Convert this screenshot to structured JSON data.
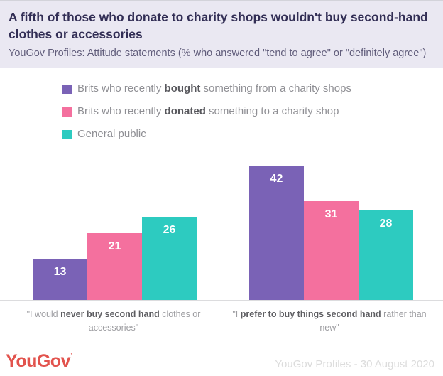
{
  "header": {
    "title": "A fifth of those who donate to charity shops wouldn't buy second-hand clothes or accessories",
    "subtitle": "YouGov Profiles: Attitude statements (% who answered \"tend to agree\" or \"definitely agree\")"
  },
  "legend": {
    "items": [
      {
        "prefix": "Brits who recently ",
        "bold": "bought",
        "suffix": " something from a charity shops"
      },
      {
        "prefix": "Brits who recently ",
        "bold": "donated",
        "suffix": " something to a charity shop"
      },
      {
        "prefix": "General public",
        "bold": "",
        "suffix": ""
      }
    ]
  },
  "chart_data": {
    "type": "bar",
    "categories": [
      "\"I would never buy second hand clothes or accessories\"",
      "\"I prefer to buy things second hand rather than new\""
    ],
    "series": [
      {
        "name": "Brits who recently bought something from a charity shops",
        "color": "#7a62b6",
        "values": [
          13,
          42
        ]
      },
      {
        "name": "Brits who recently donated something to a charity shop",
        "color": "#f4709e",
        "values": [
          21,
          31
        ]
      },
      {
        "name": "General public",
        "color": "#2dcbc0",
        "values": [
          26,
          28
        ]
      }
    ],
    "title": "A fifth of those who donate to charity shops wouldn't buy second-hand clothes or accessories",
    "xlabel": "",
    "ylabel": "",
    "ylim": [
      0,
      45
    ],
    "grid": false,
    "value_labels": "inside-top-white",
    "legend_position": "top-left"
  },
  "xlabels": [
    {
      "pre": "\"I would ",
      "bold": "never buy second hand",
      "post": " clothes or accessories\""
    },
    {
      "pre": "\"I ",
      "bold": "prefer to buy things second hand",
      "post": " rather than new\""
    }
  ],
  "footer": {
    "logo": "YouGov",
    "credit": "YouGov Profiles - 30 August 2020"
  },
  "colors": {
    "header_bg": "#eae8f2",
    "title_text": "#322e55",
    "subtitle_text": "#615d7b",
    "axis_line": "#dcdcde",
    "logo_red": "#e2534d",
    "bar_purple": "#7a62b6",
    "bar_pink": "#f4709e",
    "bar_teal": "#2dcbc0"
  }
}
